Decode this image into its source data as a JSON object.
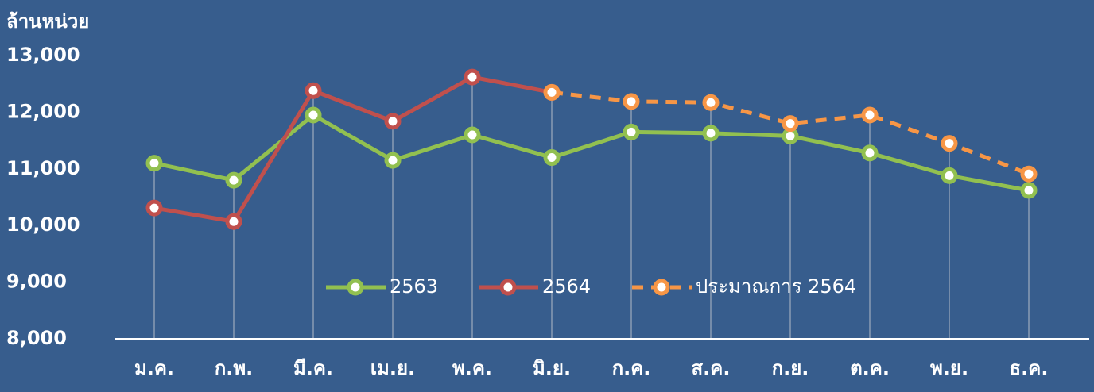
{
  "chart_data": {
    "type": "line",
    "y_label": "ล้านหน่วย",
    "categories": [
      "ม.ค.",
      "ก.พ.",
      "มี.ค.",
      "เม.ย.",
      "พ.ค.",
      "มิ.ย.",
      "ก.ค.",
      "ส.ค.",
      "ก.ย.",
      "ต.ค.",
      "พ.ย.",
      "ธ.ค."
    ],
    "series": [
      {
        "name": "2563",
        "color": "#92c050",
        "dashed": false,
        "values": [
          11100,
          10800,
          11950,
          11150,
          11600,
          11200,
          11650,
          11630,
          11580,
          11280,
          10880,
          10620
        ]
      },
      {
        "name": "2564",
        "color": "#c0504d",
        "dashed": false,
        "values": [
          10310,
          10070,
          12380,
          11840,
          12620,
          12350,
          null,
          null,
          null,
          null,
          null,
          null
        ]
      },
      {
        "name": "ประมาณการ 2564",
        "color": "#f79646",
        "dashed": true,
        "values": [
          null,
          null,
          null,
          null,
          null,
          12350,
          12190,
          12170,
          11800,
          11950,
          11450,
          10910
        ]
      }
    ],
    "ylim": [
      8000,
      13000
    ],
    "yticks": [
      {
        "value": 8000,
        "label": "8,000"
      },
      {
        "value": 9000,
        "label": "9,000"
      },
      {
        "value": 10000,
        "label": "10,000"
      },
      {
        "value": 11000,
        "label": "11,000"
      },
      {
        "value": 12000,
        "label": "12,000"
      },
      {
        "value": 13000,
        "label": "13,000"
      }
    ]
  }
}
